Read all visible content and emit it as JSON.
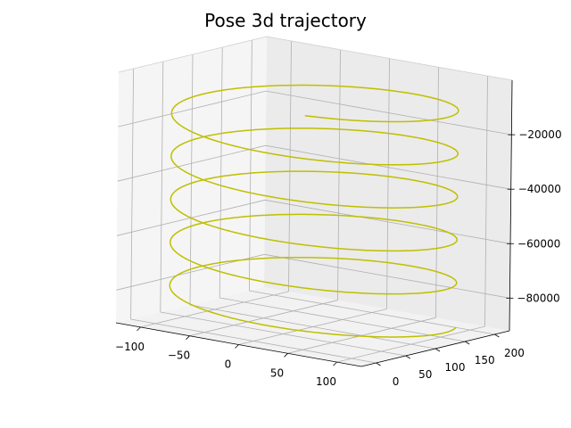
{
  "chart_data": {
    "type": "line",
    "projection": "3d",
    "title": "Pose 3d trajectory",
    "grid": true,
    "x_ticks": [
      "−100",
      "−50",
      "0",
      "50",
      "100"
    ],
    "y_ticks": [
      "0",
      "50",
      "100",
      "150",
      "200"
    ],
    "z_ticks": [
      "−20000",
      "−40000",
      "−60000",
      "−80000"
    ],
    "x_tick_values": [
      -100,
      -50,
      0,
      50,
      100
    ],
    "y_tick_values": [
      0,
      50,
      100,
      150,
      200
    ],
    "z_tick_values": [
      -20000,
      -40000,
      -60000,
      -80000
    ],
    "xlim": [
      -125,
      125
    ],
    "ylim": [
      -25,
      225
    ],
    "zlim": [
      -92000,
      0
    ],
    "series": [
      {
        "color": "#bfbf00",
        "shape": "helix",
        "center_x": 0,
        "center_y": 100,
        "radius_x": 125,
        "radius_y": 125,
        "z_start": -88000,
        "z_end": -5000,
        "turns": 5.25
      }
    ]
  }
}
